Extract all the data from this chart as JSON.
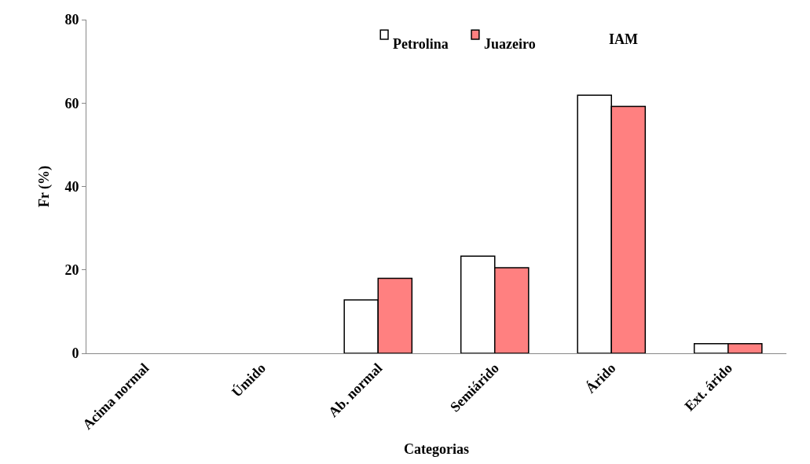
{
  "chart_data": {
    "type": "bar",
    "xlabel": "Categorias",
    "ylabel": "Fr (%)",
    "categories": [
      "Acima normal",
      "Úmido",
      "Ab. normal",
      "Semiárido",
      "Árido",
      "Ext. árido"
    ],
    "series": [
      {
        "name": "Petrolina",
        "color": "#ffffff",
        "values": [
          0,
          0,
          12.8,
          23.3,
          61.9,
          2.3
        ]
      },
      {
        "name": "Juazeiro",
        "color": "#ff8080",
        "values": [
          0,
          0,
          18.0,
          20.5,
          59.2,
          2.3
        ]
      }
    ],
    "ylim": [
      0,
      80
    ],
    "yticks": [
      0,
      20,
      40,
      60,
      80
    ],
    "grid": false,
    "legend": "top",
    "annotations": [
      "IAM"
    ]
  }
}
